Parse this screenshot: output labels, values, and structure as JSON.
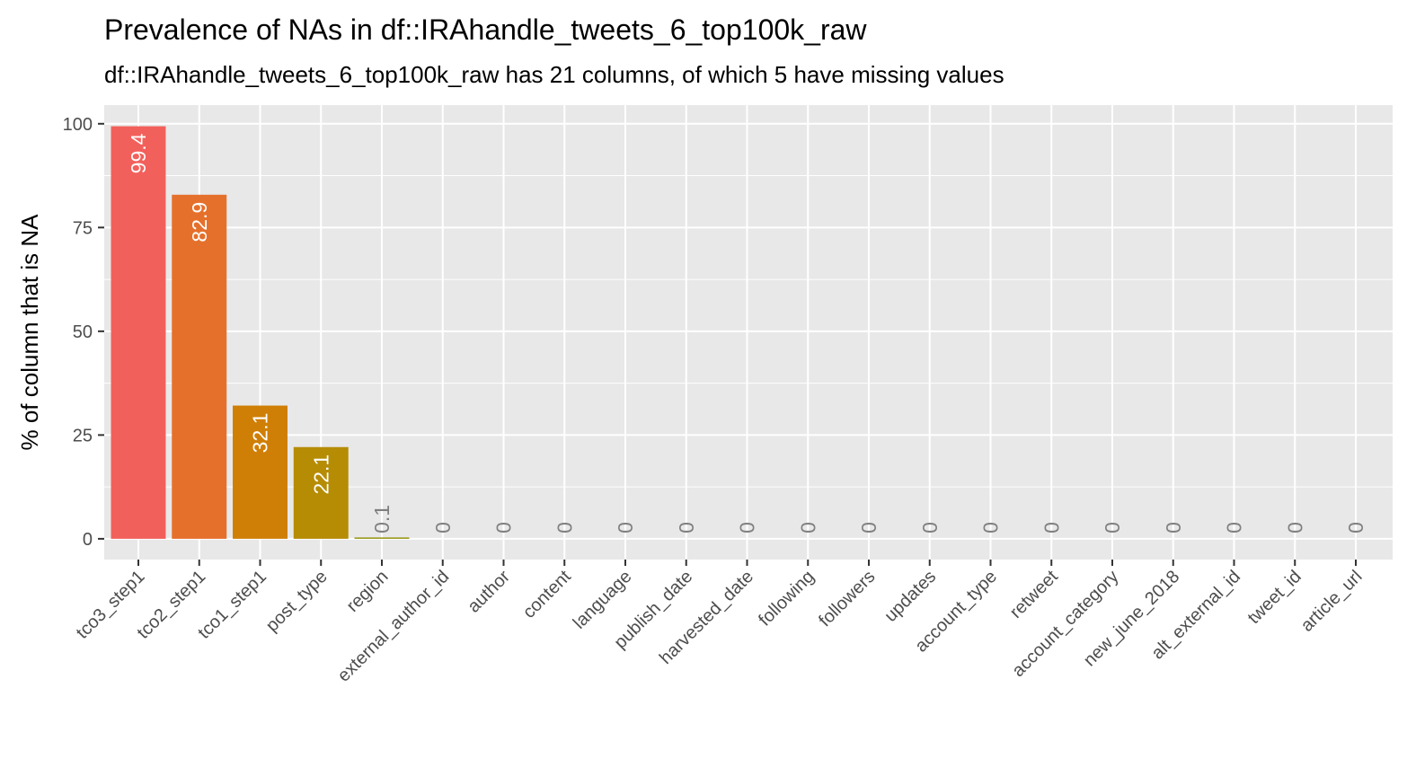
{
  "chart_data": {
    "type": "bar",
    "title": "Prevalence of NAs in df::IRAhandle_tweets_6_top100k_raw",
    "subtitle": "df::IRAhandle_tweets_6_top100k_raw has 21 columns, of which 5 have missing values",
    "xlabel": "",
    "ylabel": "% of column that is NA",
    "ylim": [
      -5,
      104.5
    ],
    "yticks": [
      0,
      25,
      50,
      75,
      100
    ],
    "grid": true,
    "legend": "none",
    "panel_background": "#e8e8e8",
    "categories": [
      "tco3_step1",
      "tco2_step1",
      "tco1_step1",
      "post_type",
      "region",
      "external_author_id",
      "author",
      "content",
      "language",
      "publish_date",
      "harvested_date",
      "following",
      "followers",
      "updates",
      "account_type",
      "retweet",
      "account_category",
      "new_june_2018",
      "alt_external_id",
      "tweet_id",
      "article_url"
    ],
    "values": [
      99.4,
      82.9,
      32.1,
      22.1,
      0.1,
      0,
      0,
      0,
      0,
      0,
      0,
      0,
      0,
      0,
      0,
      0,
      0,
      0,
      0,
      0,
      0
    ],
    "labels": [
      "99.4",
      "82.9",
      "32.1",
      "22.1",
      "0.1",
      "0",
      "0",
      "0",
      "0",
      "0",
      "0",
      "0",
      "0",
      "0",
      "0",
      "0",
      "0",
      "0",
      "0",
      "0",
      "0"
    ],
    "bar_colors": [
      "#f2605b",
      "#e5702b",
      "#d07f06",
      "#b68c05",
      "#96950e",
      "#6e9d15",
      "#2ea31b",
      "#00a75a",
      "#00a98a",
      "#00aaa9",
      "#00a8c3",
      "#00a2db",
      "#0098f2",
      "#6a89ff",
      "#a57aff",
      "#c86cf6",
      "#e066e3",
      "#ee62c6",
      "#f3619f",
      "#f4617e",
      "#f1625f"
    ]
  }
}
